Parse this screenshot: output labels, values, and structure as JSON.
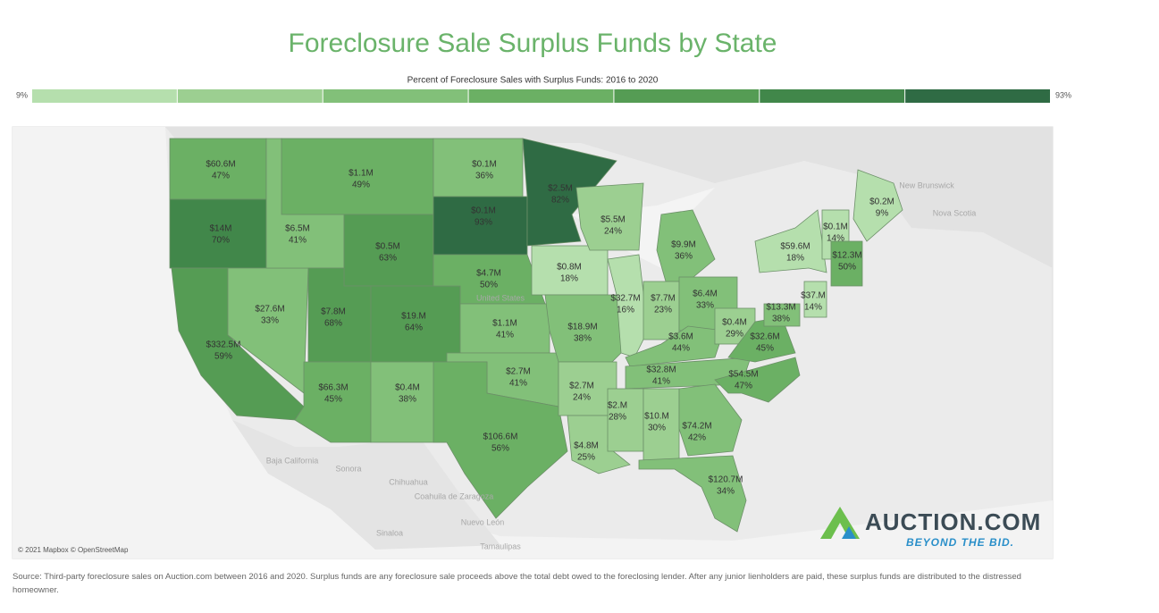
{
  "title": "Foreclosure Sale Surplus Funds by State",
  "legend": {
    "title": "Percent of Foreclosure Sales with Surplus Funds: 2016 to 2020",
    "min": {
      "value": 9,
      "label": "9%"
    },
    "max": {
      "value": 93,
      "label": "93%"
    },
    "colors": [
      "#b5dfad",
      "#9ccf91",
      "#82c079",
      "#6bb064",
      "#559c54",
      "#41874a",
      "#2f6b44"
    ]
  },
  "states": {
    "amounts": [
      "$60.6M",
      "$14M",
      "$332.5M",
      "$27.6M",
      "$6.5M",
      "$1.1M",
      "$0.5M",
      "$7.8M",
      "$19.M",
      "$66.3M",
      "$0.4M",
      "$0.1M",
      "$0.1M",
      "$4.7M",
      "$1.1M",
      "$2.7M",
      "$106.6M",
      "$2.5M",
      "$0.8M",
      "$18.9M",
      "$2.7M",
      "$4.8M",
      "$5.5M",
      "$32.7M",
      "$9.9M",
      "$7.7M",
      "$6.4M",
      "$3.6M",
      "$32.8M",
      "$2.M",
      "$10.M",
      "$74.2M",
      "$120.7M",
      "$54.5M",
      "$0.4M",
      "$32.6M",
      "$59.6M",
      "$0.1M",
      "$12.3M",
      "$37.M",
      "$13.3M",
      "$0.2M"
    ],
    "percents": [
      47,
      70,
      59,
      33,
      41,
      49,
      63,
      68,
      64,
      45,
      38,
      36,
      93,
      50,
      41,
      41,
      56,
      82,
      18,
      38,
      24,
      25,
      24,
      16,
      36,
      23,
      33,
      44,
      41,
      28,
      30,
      42,
      34,
      47,
      29,
      45,
      18,
      14,
      50,
      14,
      38,
      9
    ],
    "percent_labels": [
      "47%",
      "70%",
      "59%",
      "33%",
      "41%",
      "49%",
      "63%",
      "68%",
      "64%",
      "45%",
      "38%",
      "36%",
      "93%",
      "50%",
      "41%",
      "41%",
      "56%",
      "82%",
      "18%",
      "38%",
      "24%",
      "25%",
      "24%",
      "16%",
      "36%",
      "23%",
      "33%",
      "44%",
      "41%",
      "28%",
      "30%",
      "42%",
      "34%",
      "47%",
      "29%",
      "45%",
      "18%",
      "14%",
      "50%",
      "14%",
      "38%",
      "9%"
    ]
  },
  "places": [
    "Baja California",
    "Sonora",
    "Chihuahua",
    "Coahuila de Zaragoza",
    "Nuevo León",
    "Sinaloa",
    "Tamaulipas",
    "New Brunswick",
    "Nova Scotia",
    "United States"
  ],
  "attribution": "© 2021 Mapbox © OpenStreetMap",
  "logo": {
    "name": "AUCTION.COM",
    "tagline": "BEYOND THE BID."
  },
  "source": "Source: Third-party foreclosure sales on Auction.com between 2016 and 2020. Surplus funds are any foreclosure sale proceeds above the total debt owed to the foreclosing lender. After any junior lienholders are paid, these surplus funds are distributed to the distressed homeowner."
}
